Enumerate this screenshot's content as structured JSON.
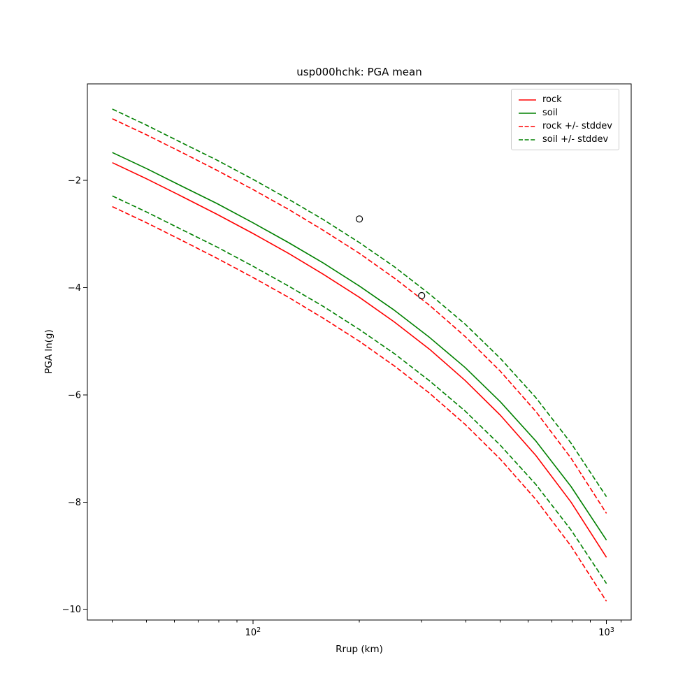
{
  "chart_data": {
    "type": "line",
    "title": "usp000hchk: PGA mean",
    "xlabel": "Rrup (km)",
    "ylabel": "PGA ln(g)",
    "x_scale": "log",
    "y_scale": "linear",
    "xlim": [
      34,
      1175
    ],
    "ylim": [
      -10.2,
      -0.2
    ],
    "grid": false,
    "legend_position": "upper right",
    "x": [
      40,
      50,
      63,
      79,
      100,
      126,
      158,
      200,
      251,
      316,
      398,
      501,
      631,
      794,
      1000
    ],
    "series": [
      {
        "key": "rock",
        "label": "rock",
        "color": "#ff0000",
        "style": "solid",
        "values": [
          -1.67,
          -1.97,
          -2.3,
          -2.63,
          -2.99,
          -3.36,
          -3.75,
          -4.18,
          -4.64,
          -5.15,
          -5.73,
          -6.38,
          -7.13,
          -8.0,
          -9.03
        ]
      },
      {
        "key": "soil",
        "label": "soil",
        "color": "#008000",
        "style": "solid",
        "values": [
          -1.48,
          -1.78,
          -2.11,
          -2.43,
          -2.79,
          -3.16,
          -3.54,
          -3.97,
          -4.42,
          -4.93,
          -5.49,
          -6.13,
          -6.86,
          -7.71,
          -8.71
        ]
      },
      {
        "key": "rock_plus_stddev",
        "label": "rock +/- stddev",
        "color": "#ff0000",
        "style": "dashed",
        "values": [
          -0.85,
          -1.15,
          -1.48,
          -1.81,
          -2.17,
          -2.54,
          -2.93,
          -3.36,
          -3.82,
          -4.33,
          -4.91,
          -5.56,
          -6.31,
          -7.18,
          -8.21
        ]
      },
      {
        "key": "rock_minus_stddev",
        "label": "rock +/- stddev",
        "color": "#ff0000",
        "style": "dashed",
        "values": [
          -2.49,
          -2.79,
          -3.12,
          -3.45,
          -3.81,
          -4.18,
          -4.57,
          -5.0,
          -5.46,
          -5.97,
          -6.55,
          -7.2,
          -7.95,
          -8.82,
          -9.85
        ]
      },
      {
        "key": "soil_plus_stddev",
        "label": "soil +/- stddev",
        "color": "#008000",
        "style": "dashed",
        "values": [
          -0.67,
          -0.97,
          -1.3,
          -1.62,
          -1.98,
          -2.35,
          -2.73,
          -3.16,
          -3.61,
          -4.12,
          -4.68,
          -5.32,
          -6.05,
          -6.9,
          -7.9
        ]
      },
      {
        "key": "soil_minus_stddev",
        "label": "soil +/- stddev",
        "color": "#008000",
        "style": "dashed",
        "values": [
          -2.29,
          -2.59,
          -2.92,
          -3.24,
          -3.6,
          -3.97,
          -4.35,
          -4.78,
          -5.23,
          -5.74,
          -6.3,
          -6.94,
          -7.67,
          -8.52,
          -9.52
        ]
      }
    ],
    "scatter_points": [
      {
        "x": 200,
        "y": -2.72
      },
      {
        "x": 300,
        "y": -4.15
      }
    ],
    "legend": [
      {
        "label": "rock",
        "color": "#ff0000",
        "style": "solid"
      },
      {
        "label": "soil",
        "color": "#008000",
        "style": "solid"
      },
      {
        "label": "rock +/- stddev",
        "color": "#ff0000",
        "style": "dashed"
      },
      {
        "label": "soil +/- stddev",
        "color": "#008000",
        "style": "dashed"
      }
    ],
    "yticks": [
      {
        "value": -2,
        "label": "−2"
      },
      {
        "value": -4,
        "label": "−4"
      },
      {
        "value": -6,
        "label": "−6"
      },
      {
        "value": -8,
        "label": "−8"
      },
      {
        "value": -10,
        "label": "−10"
      }
    ],
    "xticks_major": [
      {
        "value": 100,
        "base": "10",
        "exp": "2"
      },
      {
        "value": 1000,
        "base": "10",
        "exp": "3"
      }
    ],
    "xticks_minor": [
      40,
      50,
      60,
      70,
      80,
      90,
      200,
      300,
      400,
      500,
      600,
      700,
      800,
      900,
      1100
    ]
  }
}
